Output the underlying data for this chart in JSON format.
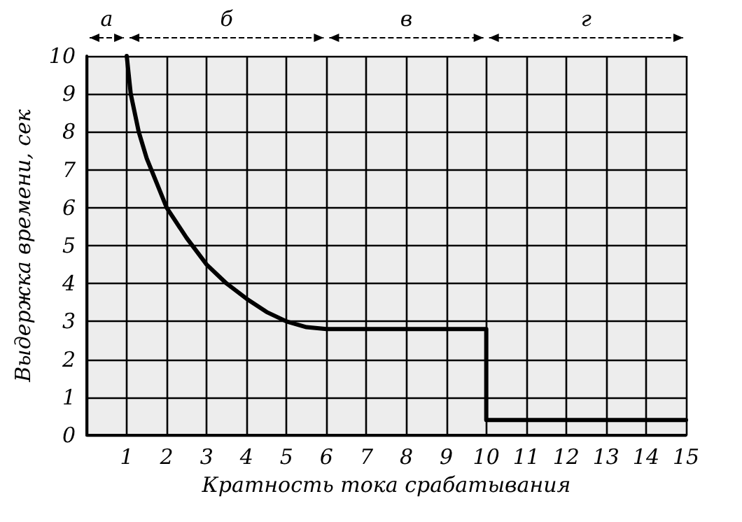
{
  "chart_data": {
    "type": "line",
    "xlabel": "Кратность тока срабатывания",
    "ylabel": "Выдержка времени, сек",
    "series": [
      {
        "color": "#000000",
        "x": [
          1,
          1.1,
          1.3,
          1.5,
          2,
          2.5,
          3,
          3.5,
          4,
          4.5,
          5,
          5.5,
          6,
          8,
          10,
          10,
          15
        ],
        "values": [
          10,
          9,
          8,
          7.3,
          6,
          5.2,
          4.5,
          4,
          3.6,
          3.25,
          3,
          2.85,
          2.8,
          2.8,
          2.8,
          0.4,
          0.4
        ]
      }
    ],
    "xlim": [
      0,
      15
    ],
    "xticks": [
      {
        "value": 0,
        "label": null
      },
      1,
      2,
      3,
      4,
      5,
      6,
      7,
      8,
      9,
      10,
      11,
      12,
      13,
      14,
      15
    ],
    "ylim": [
      0,
      10
    ],
    "yticks": [
      0,
      1,
      2,
      3,
      4,
      5,
      6,
      7,
      8,
      9,
      10
    ],
    "bands": [
      {
        "axis": "x",
        "from": 0,
        "to": 1,
        "label": "а"
      },
      {
        "axis": "x",
        "from": 1,
        "to": 6,
        "label": "б"
      },
      {
        "axis": "x",
        "from": 6,
        "to": 10,
        "label": "в"
      },
      {
        "axis": "x",
        "from": 10,
        "to": 15,
        "label": "г"
      }
    ],
    "grid": true,
    "marker": "none",
    "line_style": "solid"
  }
}
